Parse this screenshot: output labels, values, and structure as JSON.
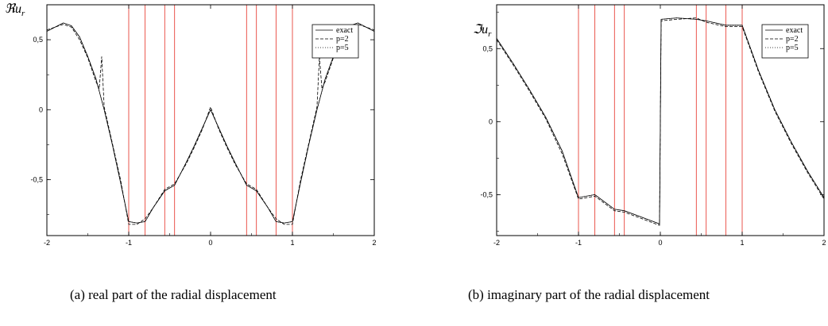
{
  "chart_data": [
    {
      "type": "line",
      "ylabel_symbol": "ℜ",
      "ylabel_var": "u",
      "ylabel_sub": "r",
      "caption": "(a)  real part of the radial displacement",
      "xlim": [
        -2,
        2
      ],
      "ylim": [
        -0.9,
        0.75
      ],
      "x_ticks": [
        -2,
        -1,
        0,
        1,
        2
      ],
      "x_tick_labels": [
        "-2",
        "-1",
        "0",
        "1",
        "2"
      ],
      "y_ticks": [
        0.5,
        0,
        -0.5
      ],
      "y_tick_labels": [
        "0,5",
        "0",
        "-0,5"
      ],
      "vlines": [
        -1,
        -0.8,
        -0.56,
        -0.44,
        0.44,
        0.56,
        0.8,
        1
      ],
      "vline_color": "#e8443a",
      "legend": [
        "exact",
        "p=2",
        "p=5"
      ],
      "legend_position": "top-right",
      "series": [
        {
          "name": "exact",
          "x": [
            -2,
            -1.8,
            -1.7,
            -1.6,
            -1.5,
            -1.4,
            -1.3,
            -1.2,
            -1.1,
            -1.0,
            -0.9,
            -0.8,
            -0.7,
            -0.56,
            -0.44,
            -0.3,
            -0.2,
            -0.1,
            0,
            0.1,
            0.2,
            0.3,
            0.44,
            0.56,
            0.7,
            0.8,
            0.9,
            1.0,
            1.1,
            1.2,
            1.3,
            1.4,
            1.5,
            1.6,
            1.7,
            1.8,
            2
          ],
          "y": [
            0.56,
            0.62,
            0.6,
            0.52,
            0.38,
            0.22,
            0.0,
            -0.25,
            -0.52,
            -0.8,
            -0.81,
            -0.8,
            -0.7,
            -0.58,
            -0.54,
            -0.38,
            -0.26,
            -0.13,
            0,
            -0.13,
            -0.26,
            -0.38,
            -0.54,
            -0.58,
            -0.7,
            -0.8,
            -0.81,
            -0.8,
            -0.52,
            -0.25,
            0.0,
            0.22,
            0.38,
            0.52,
            0.6,
            0.62,
            0.56
          ]
        },
        {
          "name": "p=2",
          "x": [
            -2,
            -1.8,
            -1.7,
            -1.6,
            -1.5,
            -1.4,
            -1.36,
            -1.33,
            -1.3,
            -1.2,
            -1.1,
            -1.0,
            -0.9,
            -0.8,
            -0.7,
            -0.56,
            -0.44,
            -0.3,
            -0.2,
            -0.1,
            0,
            0.1,
            0.2,
            0.3,
            0.44,
            0.56,
            0.7,
            0.8,
            0.9,
            1.0,
            1.1,
            1.2,
            1.3,
            1.33,
            1.36,
            1.4,
            1.5,
            1.6,
            1.7,
            1.8,
            2
          ],
          "y": [
            0.57,
            0.61,
            0.59,
            0.5,
            0.37,
            0.2,
            0.15,
            0.38,
            0.02,
            -0.24,
            -0.5,
            -0.82,
            -0.82,
            -0.78,
            -0.7,
            -0.57,
            -0.53,
            -0.39,
            -0.27,
            -0.14,
            0.02,
            -0.14,
            -0.27,
            -0.39,
            -0.53,
            -0.57,
            -0.7,
            -0.78,
            -0.82,
            -0.82,
            -0.5,
            -0.24,
            0.02,
            0.38,
            0.15,
            0.2,
            0.37,
            0.5,
            0.59,
            0.61,
            0.57
          ]
        },
        {
          "name": "p=5",
          "x": [
            -2,
            -1.8,
            -1.7,
            -1.6,
            -1.5,
            -1.4,
            -1.3,
            -1.2,
            -1.1,
            -1.0,
            -0.9,
            -0.8,
            -0.7,
            -0.56,
            -0.44,
            -0.3,
            -0.2,
            -0.1,
            0,
            0.1,
            0.2,
            0.3,
            0.44,
            0.56,
            0.7,
            0.8,
            0.9,
            1.0,
            1.1,
            1.2,
            1.3,
            1.4,
            1.5,
            1.6,
            1.7,
            1.8,
            2
          ],
          "y": [
            0.56,
            0.62,
            0.6,
            0.52,
            0.38,
            0.22,
            0.0,
            -0.25,
            -0.52,
            -0.8,
            -0.81,
            -0.8,
            -0.7,
            -0.58,
            -0.54,
            -0.38,
            -0.26,
            -0.13,
            0,
            -0.13,
            -0.26,
            -0.38,
            -0.54,
            -0.58,
            -0.7,
            -0.8,
            -0.81,
            -0.8,
            -0.52,
            -0.25,
            0.0,
            0.22,
            0.38,
            0.52,
            0.6,
            0.62,
            0.56
          ]
        }
      ]
    },
    {
      "type": "line",
      "ylabel_symbol": "ℑ",
      "ylabel_var": "u",
      "ylabel_sub": "r",
      "caption": "(b)  imaginary part of the radial displacement",
      "xlim": [
        -2,
        2
      ],
      "ylim": [
        -0.78,
        0.8
      ],
      "x_ticks": [
        -2,
        -1,
        0,
        1,
        2
      ],
      "x_tick_labels": [
        "-2",
        "-1",
        "0",
        "1",
        "2"
      ],
      "y_ticks": [
        0.5,
        0,
        -0.5
      ],
      "y_tick_labels": [
        "0,5",
        "0",
        "-0,5"
      ],
      "vlines": [
        -1,
        -0.8,
        -0.56,
        -0.44,
        0.44,
        0.56,
        0.8,
        1
      ],
      "vline_color": "#e8443a",
      "legend": [
        "exact",
        "p=2",
        "p=5"
      ],
      "legend_position": "top-right",
      "series": [
        {
          "name": "exact",
          "x": [
            -2,
            -1.8,
            -1.6,
            -1.4,
            -1.2,
            -1.0,
            -0.8,
            -0.56,
            -0.44,
            -0.2,
            -0.01,
            0.01,
            0.2,
            0.44,
            0.56,
            0.8,
            1.0,
            1.2,
            1.4,
            1.6,
            1.8,
            2
          ],
          "y": [
            0.57,
            0.4,
            0.22,
            0.03,
            -0.2,
            -0.52,
            -0.5,
            -0.6,
            -0.61,
            -0.66,
            -0.7,
            0.7,
            0.71,
            0.7,
            0.69,
            0.66,
            0.66,
            0.35,
            0.08,
            -0.14,
            -0.34,
            -0.52
          ]
        },
        {
          "name": "p=2",
          "x": [
            -2,
            -1.8,
            -1.6,
            -1.4,
            -1.2,
            -1.0,
            -0.8,
            -0.56,
            -0.44,
            -0.2,
            -0.01,
            0.01,
            0.2,
            0.44,
            0.56,
            0.8,
            1.0,
            1.2,
            1.4,
            1.6,
            1.8,
            2
          ],
          "y": [
            0.56,
            0.39,
            0.21,
            0.02,
            -0.22,
            -0.53,
            -0.51,
            -0.61,
            -0.62,
            -0.67,
            -0.71,
            0.69,
            0.7,
            0.71,
            0.68,
            0.65,
            0.65,
            0.34,
            0.07,
            -0.15,
            -0.35,
            -0.53
          ]
        },
        {
          "name": "p=5",
          "x": [
            -2,
            -1.8,
            -1.6,
            -1.4,
            -1.2,
            -1.0,
            -0.8,
            -0.56,
            -0.44,
            -0.2,
            -0.01,
            0.01,
            0.2,
            0.44,
            0.56,
            0.8,
            1.0,
            1.2,
            1.4,
            1.6,
            1.8,
            2
          ],
          "y": [
            0.57,
            0.4,
            0.22,
            0.03,
            -0.2,
            -0.52,
            -0.5,
            -0.6,
            -0.61,
            -0.66,
            -0.7,
            0.7,
            0.71,
            0.7,
            0.69,
            0.66,
            0.66,
            0.35,
            0.08,
            -0.14,
            -0.34,
            -0.52
          ]
        }
      ]
    }
  ]
}
